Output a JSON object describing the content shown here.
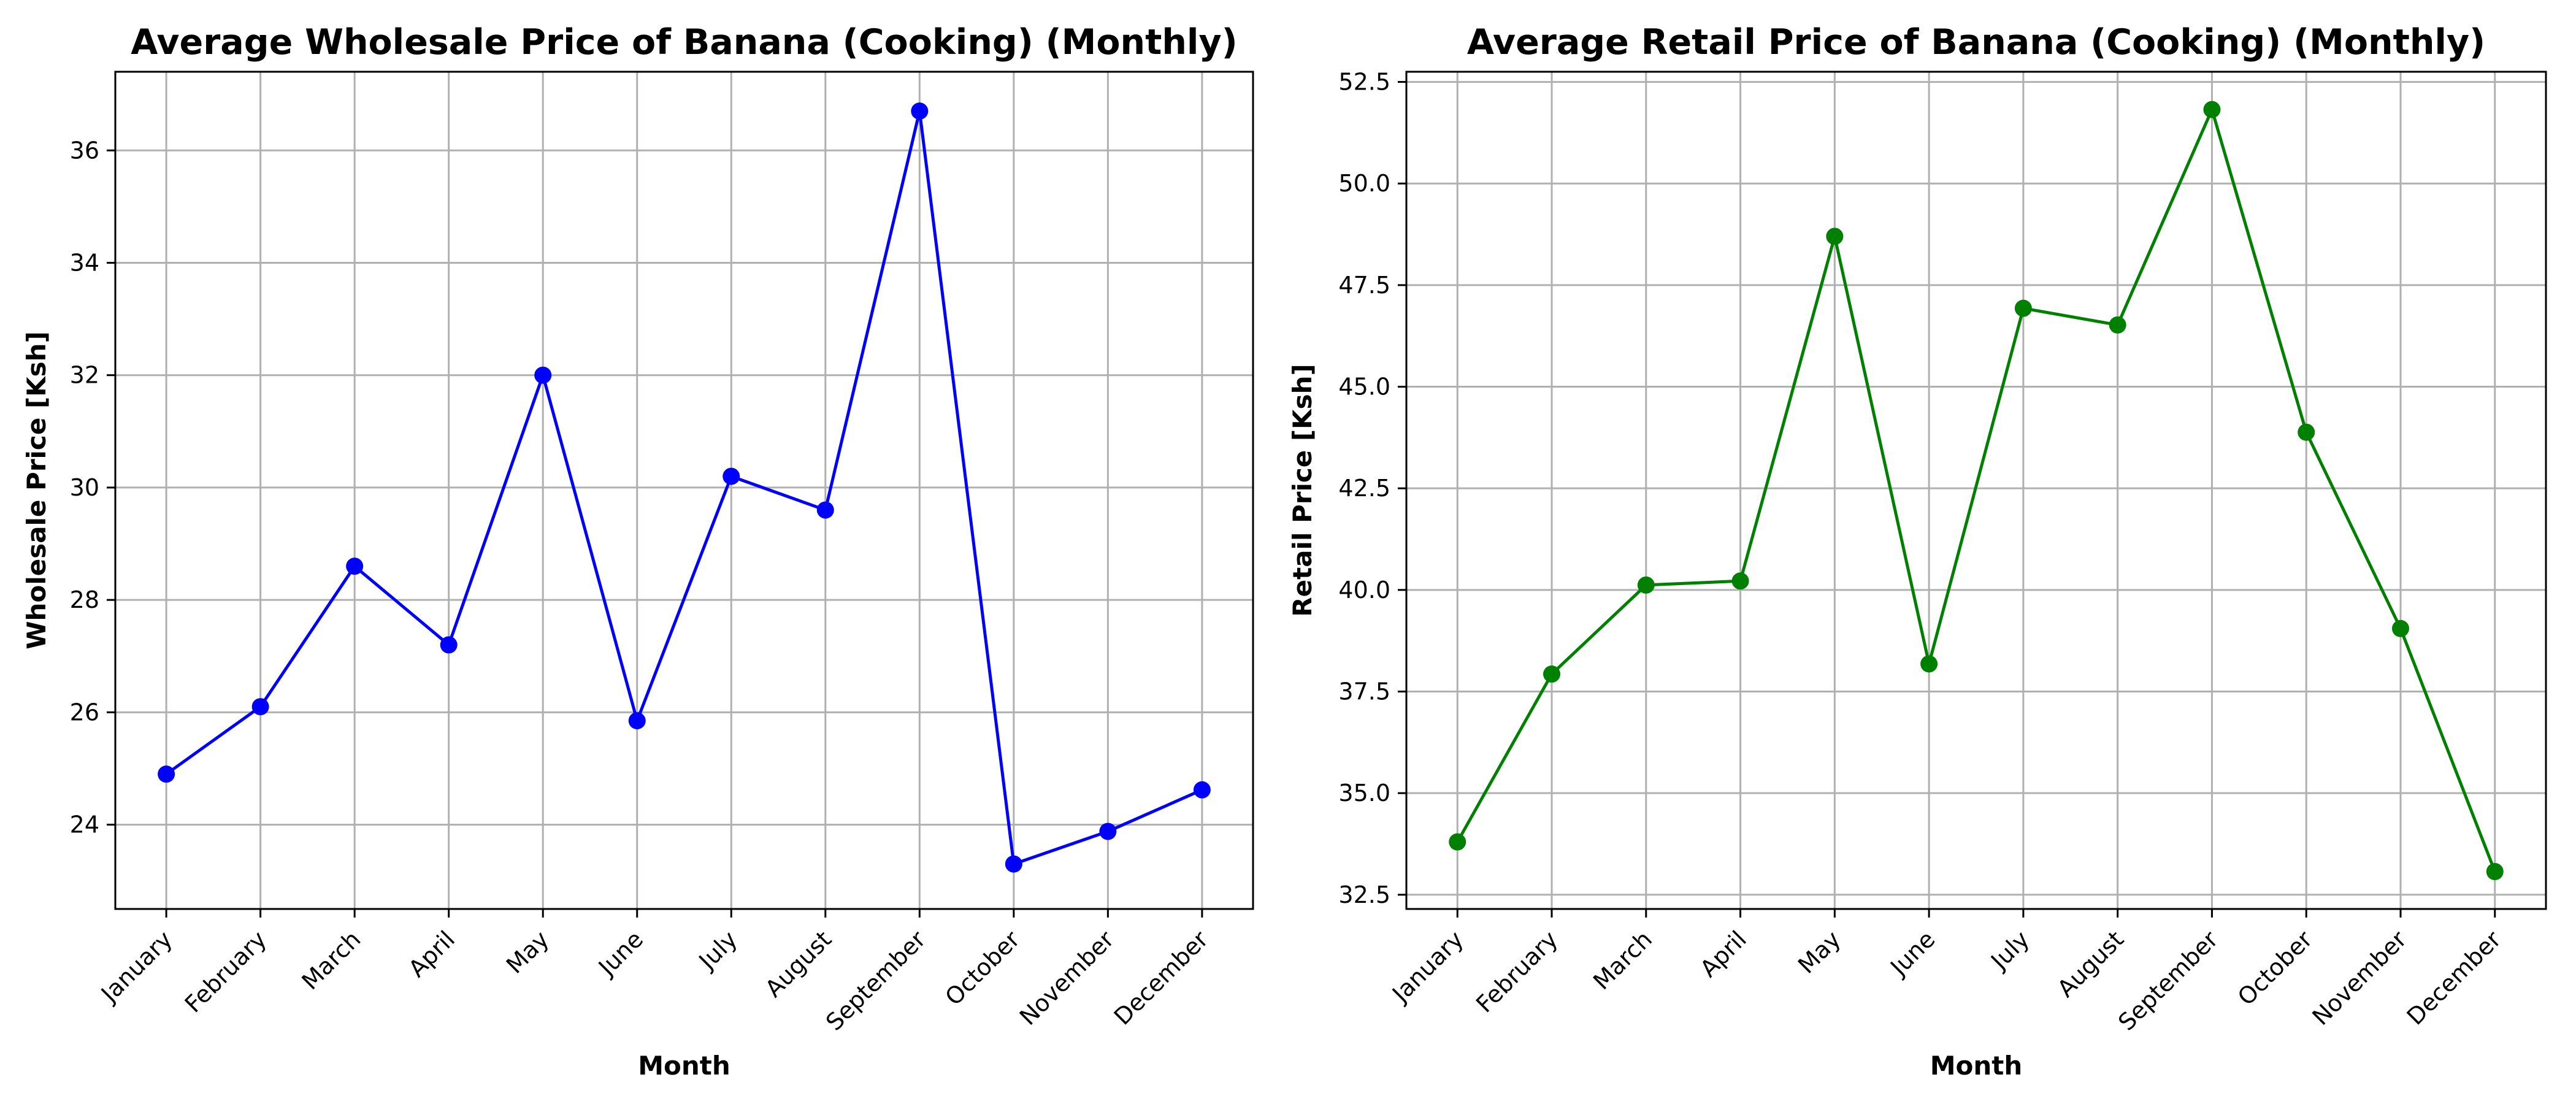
{
  "chart_data": [
    {
      "type": "line",
      "title": "Average Wholesale Price of Banana (Cooking) (Monthly)",
      "xlabel": "Month",
      "ylabel": "Wholesale Price [Ksh]",
      "categories": [
        "January",
        "February",
        "March",
        "April",
        "May",
        "June",
        "July",
        "August",
        "September",
        "October",
        "November",
        "December"
      ],
      "values": [
        24.9,
        26.1,
        28.6,
        27.2,
        32.0,
        25.85,
        30.2,
        29.6,
        36.7,
        23.3,
        23.88,
        24.62
      ],
      "ylim": [
        22.5,
        37.4
      ],
      "yticks": [
        24,
        26,
        28,
        30,
        32,
        34,
        36
      ],
      "ytick_labels": [
        "24",
        "26",
        "28",
        "30",
        "32",
        "34",
        "36"
      ],
      "color": "#0000ff",
      "marker": "circle",
      "grid": true
    },
    {
      "type": "line",
      "title": "Average Retail Price of Banana (Cooking) (Monthly)",
      "xlabel": "Month",
      "ylabel": "Retail Price [Ksh]",
      "categories": [
        "January",
        "February",
        "March",
        "April",
        "May",
        "June",
        "July",
        "August",
        "September",
        "October",
        "November",
        "December"
      ],
      "values": [
        33.8,
        37.93,
        40.12,
        40.22,
        48.7,
        38.18,
        46.93,
        46.52,
        51.82,
        43.88,
        39.05,
        33.07
      ],
      "ylim": [
        32.15,
        52.75
      ],
      "yticks": [
        32.5,
        35.0,
        37.5,
        40.0,
        42.5,
        45.0,
        47.5,
        50.0,
        52.5
      ],
      "ytick_labels": [
        "32.5",
        "35.0",
        "37.5",
        "40.0",
        "42.5",
        "45.0",
        "47.5",
        "50.0",
        "52.5"
      ],
      "color": "#008000",
      "marker": "circle",
      "grid": true
    }
  ]
}
